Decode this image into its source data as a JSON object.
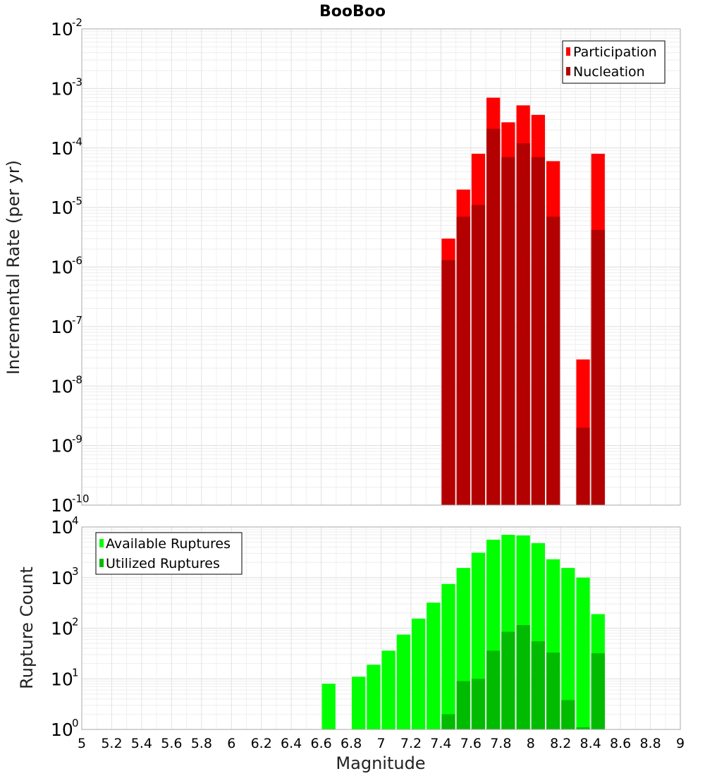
{
  "chart_data": [
    {
      "type": "bar",
      "title": "BooBoo",
      "xlabel": "Magnitude",
      "ylabel": "Incremental Rate (per yr)",
      "yscale": "log",
      "ylim_exponents": [
        -10,
        -2
      ],
      "xlim": [
        5,
        9
      ],
      "bin_width": 0.1,
      "legend_position": "top-right",
      "series": [
        {
          "name": "Participation",
          "color": "#ff0000",
          "points": [
            {
              "x": 7.45,
              "y": 3e-06
            },
            {
              "x": 7.55,
              "y": 2e-05
            },
            {
              "x": 7.65,
              "y": 8e-05
            },
            {
              "x": 7.75,
              "y": 0.0007
            },
            {
              "x": 7.85,
              "y": 0.00027
            },
            {
              "x": 7.95,
              "y": 0.00052
            },
            {
              "x": 8.05,
              "y": 0.00036
            },
            {
              "x": 8.15,
              "y": 6e-05
            },
            {
              "x": 8.35,
              "y": 2.8e-08
            },
            {
              "x": 8.45,
              "y": 8e-05
            }
          ]
        },
        {
          "name": "Nucleation",
          "color": "#b30000",
          "points": [
            {
              "x": 7.45,
              "y": 1.3e-06
            },
            {
              "x": 7.55,
              "y": 7e-06
            },
            {
              "x": 7.65,
              "y": 1.1e-05
            },
            {
              "x": 7.75,
              "y": 0.00021
            },
            {
              "x": 7.85,
              "y": 7e-05
            },
            {
              "x": 7.95,
              "y": 0.00012
            },
            {
              "x": 8.05,
              "y": 7e-05
            },
            {
              "x": 8.15,
              "y": 7e-06
            },
            {
              "x": 8.35,
              "y": 2e-09
            },
            {
              "x": 8.45,
              "y": 4.2e-06
            }
          ]
        }
      ]
    },
    {
      "type": "bar",
      "title": "",
      "xlabel": "Magnitude",
      "ylabel": "Rupture Count",
      "yscale": "log",
      "ylim_exponents": [
        0,
        4
      ],
      "xlim": [
        5,
        9
      ],
      "bin_width": 0.1,
      "legend_position": "top-left",
      "xticks": [
        "5",
        "5.2",
        "5.4",
        "5.6",
        "5.8",
        "6",
        "6.2",
        "6.4",
        "6.6",
        "6.8",
        "7",
        "7.2",
        "7.4",
        "7.6",
        "7.8",
        "8",
        "8.2",
        "8.4",
        "8.6",
        "8.8",
        "9"
      ],
      "series": [
        {
          "name": "Available Ruptures",
          "color": "#00ff00",
          "points": [
            {
              "x": 6.65,
              "y": 8
            },
            {
              "x": 6.85,
              "y": 11
            },
            {
              "x": 6.95,
              "y": 19
            },
            {
              "x": 7.05,
              "y": 36
            },
            {
              "x": 7.15,
              "y": 75
            },
            {
              "x": 7.25,
              "y": 155
            },
            {
              "x": 7.35,
              "y": 320
            },
            {
              "x": 7.45,
              "y": 750
            },
            {
              "x": 7.55,
              "y": 1550
            },
            {
              "x": 7.65,
              "y": 3100
            },
            {
              "x": 7.75,
              "y": 5600
            },
            {
              "x": 7.85,
              "y": 7000
            },
            {
              "x": 7.95,
              "y": 6800
            },
            {
              "x": 8.05,
              "y": 4800
            },
            {
              "x": 8.15,
              "y": 2300
            },
            {
              "x": 8.25,
              "y": 1550
            },
            {
              "x": 8.35,
              "y": 1000
            },
            {
              "x": 8.45,
              "y": 190
            }
          ]
        },
        {
          "name": "Utilized Ruptures",
          "color": "#00bb00",
          "points": [
            {
              "x": 7.45,
              "y": 2
            },
            {
              "x": 7.55,
              "y": 9
            },
            {
              "x": 7.65,
              "y": 10
            },
            {
              "x": 7.75,
              "y": 36
            },
            {
              "x": 7.85,
              "y": 85
            },
            {
              "x": 7.95,
              "y": 115
            },
            {
              "x": 8.05,
              "y": 55
            },
            {
              "x": 8.15,
              "y": 33
            },
            {
              "x": 8.25,
              "y": 3.8
            },
            {
              "x": 8.35,
              "y": 1.1
            },
            {
              "x": 8.45,
              "y": 32
            }
          ]
        }
      ]
    }
  ]
}
